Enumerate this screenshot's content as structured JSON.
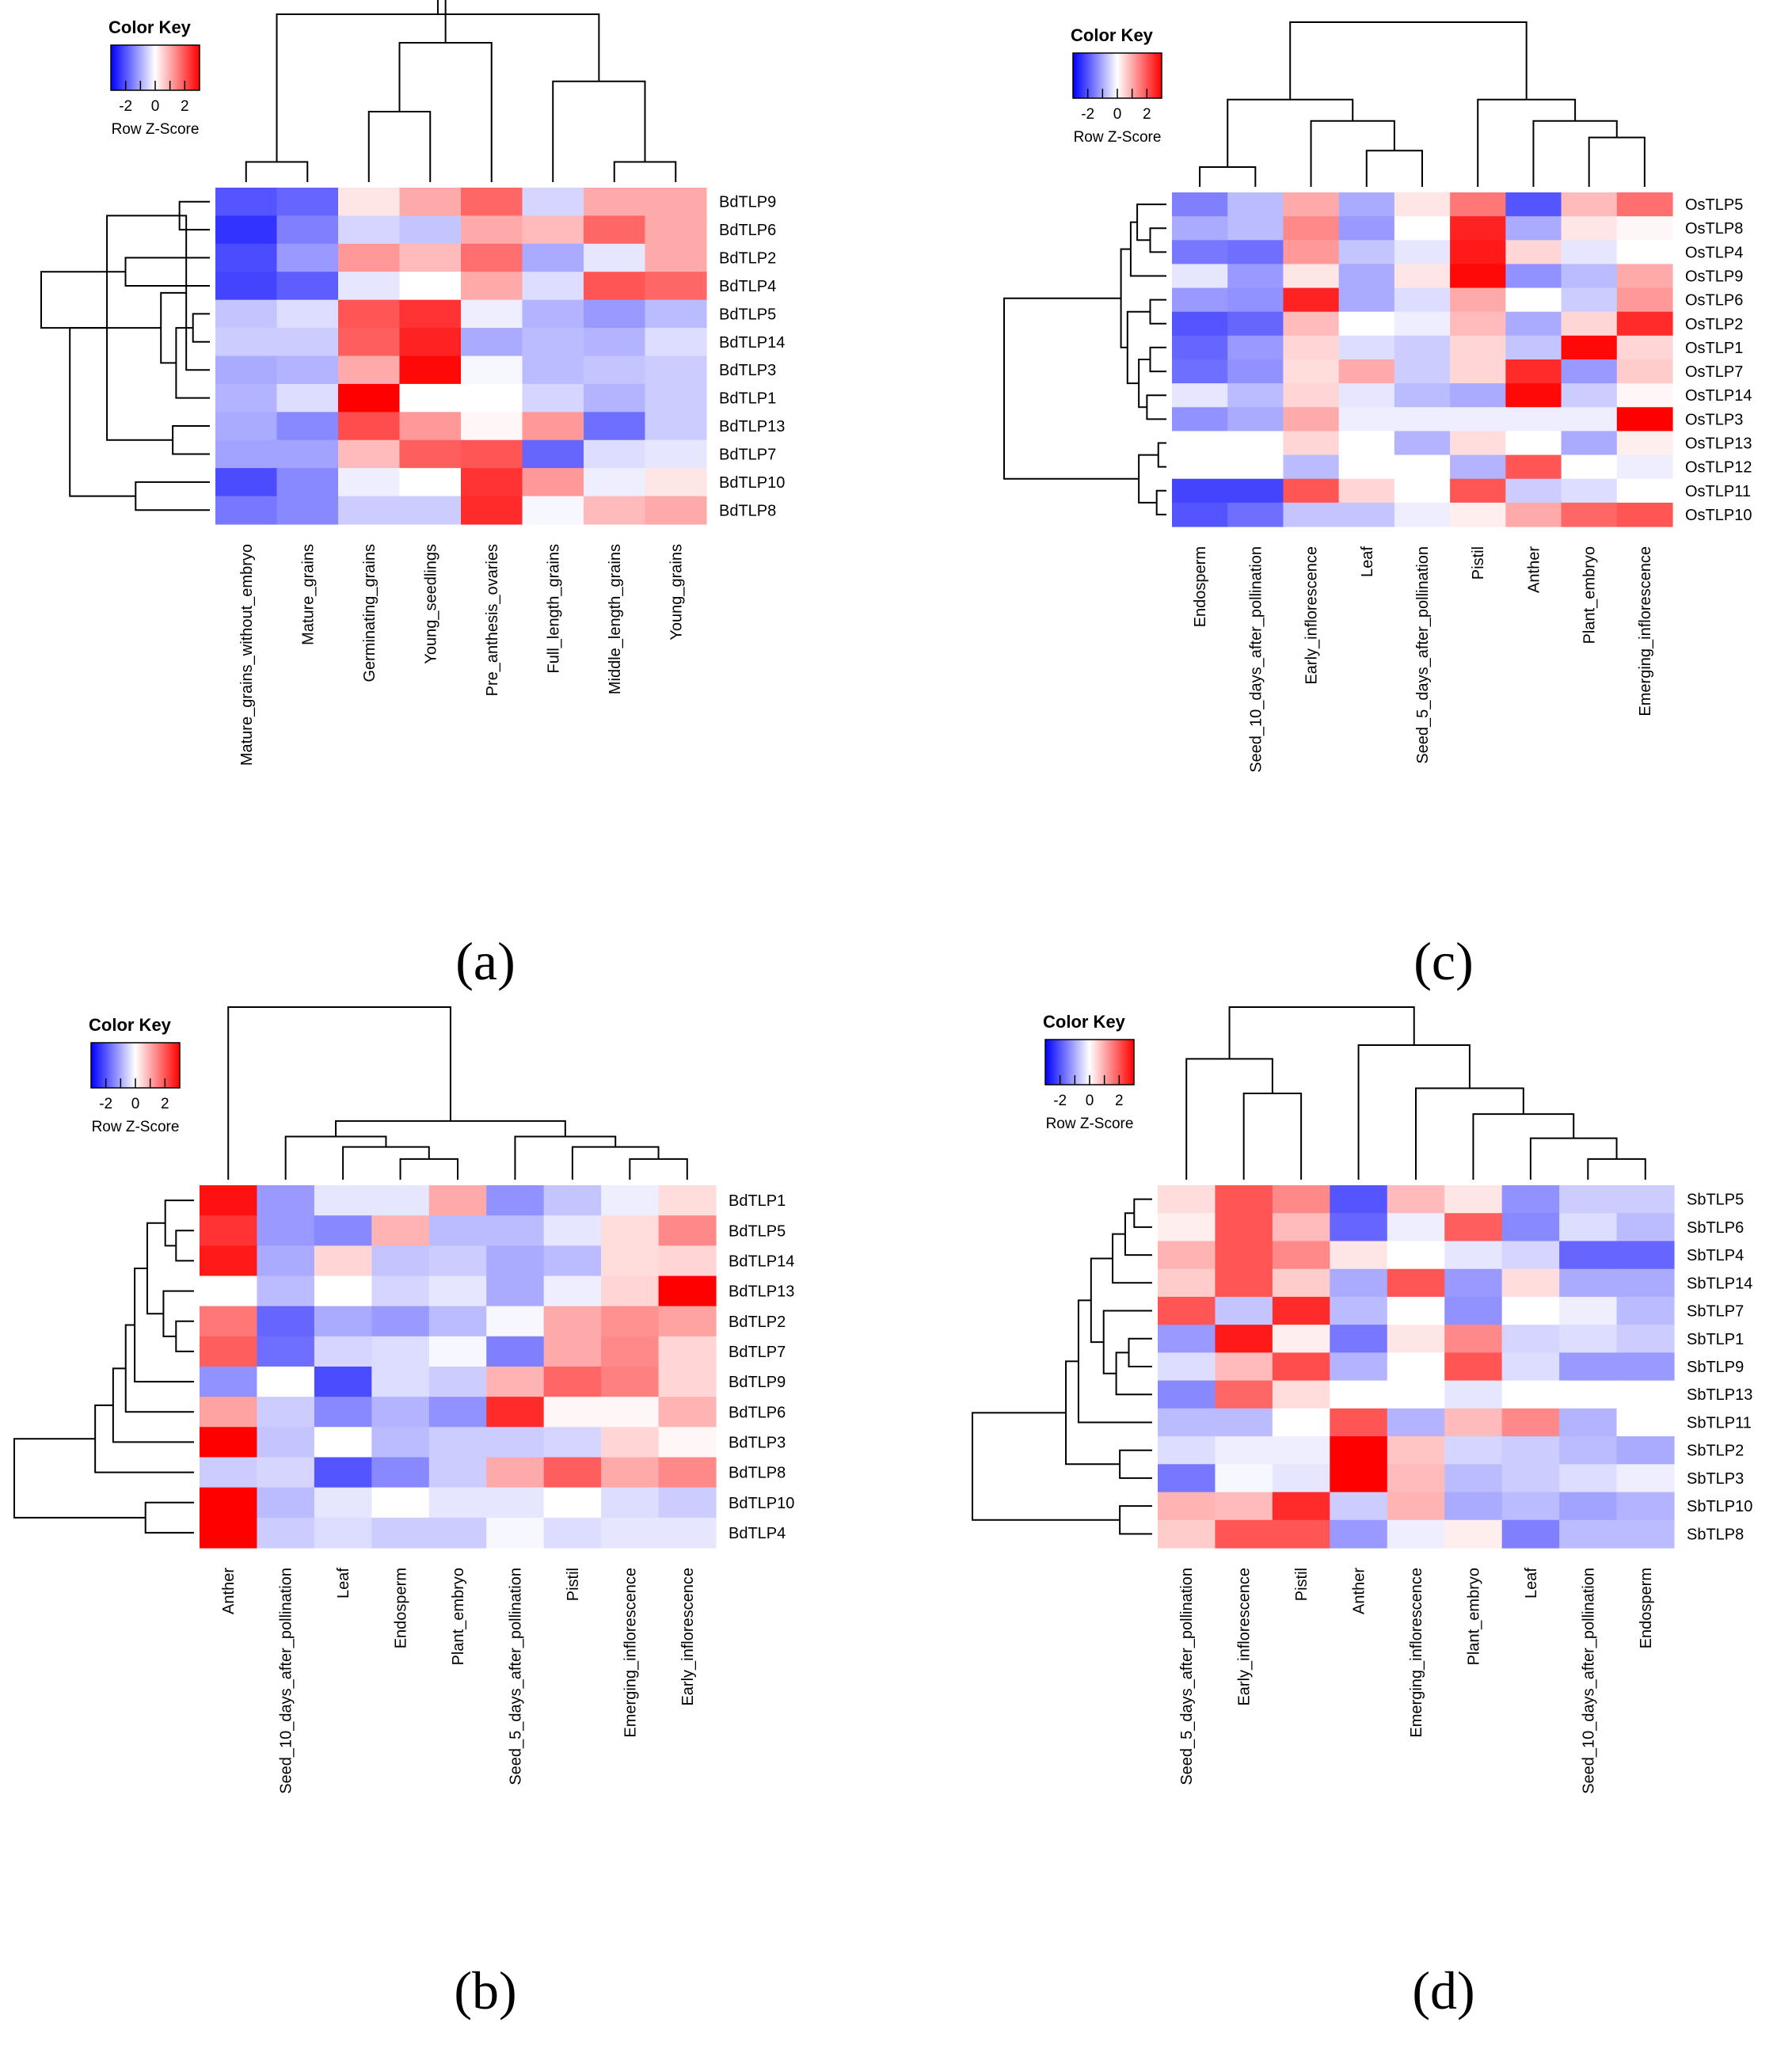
{
  "chart_data": [
    {
      "type": "heatmap",
      "panel": "(a)",
      "color_key": {
        "title": "Color Key",
        "ticks": [
          "-2",
          "0",
          "2"
        ],
        "label": "Row Z-Score",
        "colors": {
          "low": "#0000ff",
          "mid": "#ffffff",
          "high": "#ff0000"
        },
        "range": [
          -3,
          3
        ]
      },
      "columns": [
        "Mature_grains_without_embryo",
        "Mature_grains",
        "Germinating_grains",
        "Young_seedlings",
        "Pre_anthesis_ovaries",
        "Full_length_grains",
        "Middle_length_grains",
        "Young_grains"
      ],
      "rows": [
        "BdTLP9",
        "BdTLP6",
        "BdTLP2",
        "BdTLP4",
        "BdTLP5",
        "BdTLP14",
        "BdTLP3",
        "BdTLP1",
        "BdTLP13",
        "BdTLP7",
        "BdTLP10",
        "BdTLP8"
      ],
      "values": [
        [
          -2.0,
          -1.8,
          0.3,
          1.0,
          1.8,
          -0.5,
          1.0,
          1.0
        ],
        [
          -2.4,
          -1.5,
          -0.5,
          -0.7,
          1.0,
          0.8,
          1.8,
          1.0
        ],
        [
          -2.1,
          -1.2,
          1.2,
          0.8,
          1.7,
          -1.0,
          -0.3,
          1.0
        ],
        [
          -2.2,
          -1.9,
          -0.3,
          0.0,
          1.0,
          -0.4,
          2.0,
          1.8
        ],
        [
          -0.7,
          -0.4,
          2.0,
          2.4,
          -0.2,
          -0.9,
          -1.2,
          -0.8
        ],
        [
          -0.6,
          -0.6,
          1.9,
          2.6,
          -1.0,
          -0.8,
          -0.9,
          -0.4
        ],
        [
          -1.0,
          -0.9,
          1.0,
          2.9,
          -0.1,
          -0.8,
          -0.7,
          -0.6
        ],
        [
          -0.9,
          -0.4,
          3.0,
          0.0,
          0.0,
          -0.5,
          -0.9,
          -0.6
        ],
        [
          -1.0,
          -1.4,
          2.1,
          1.2,
          0.1,
          1.2,
          -1.7,
          -0.6
        ],
        [
          -1.1,
          -1.1,
          0.8,
          1.9,
          2.0,
          -1.8,
          -0.4,
          -0.3
        ],
        [
          -2.1,
          -1.4,
          -0.2,
          0.0,
          2.4,
          1.2,
          -0.2,
          0.3
        ],
        [
          -1.6,
          -1.4,
          -0.6,
          -0.6,
          2.5,
          -0.1,
          0.8,
          1.0
        ]
      ],
      "col_dendrogram": [
        [
          0,
          1,
          0.12
        ],
        [
          6,
          7,
          0.12
        ],
        [
          2,
          3,
          0.42
        ],
        [
          5,
          9,
          0.6
        ],
        [
          4,
          10,
          0.83
        ],
        [
          8,
          11,
          1.0
        ],
        [
          12,
          13,
          1.18
        ]
      ],
      "row_dendrogram": [
        [
          0,
          1,
          0.18
        ],
        [
          4,
          5,
          0.1
        ],
        [
          12,
          6,
          0.14
        ],
        [
          13,
          7,
          0.2
        ],
        [
          8,
          9,
          0.22
        ],
        [
          14,
          15,
          0.29
        ],
        [
          10,
          11,
          0.44
        ],
        [
          2,
          3,
          0.5
        ],
        [
          12,
          16,
          0.61
        ],
        [
          17,
          18,
          0.83
        ],
        [
          19,
          20,
          1.0
        ]
      ]
    },
    {
      "type": "heatmap",
      "panel": "(c)",
      "color_key": {
        "title": "Color Key",
        "ticks": [
          "-2",
          "0",
          "2"
        ],
        "label": "Row Z-Score",
        "colors": {
          "low": "#0000ff",
          "mid": "#ffffff",
          "high": "#ff0000"
        },
        "range": [
          -3,
          3
        ]
      },
      "columns": [
        "Endosperm",
        "Seed_10_days_after_pollination",
        "Early_inflorescence",
        "Leaf",
        "Seed_5_days_after_pollination",
        "Pistil",
        "Anther",
        "Plant_embryo",
        "Emerging_inflorescence"
      ],
      "rows": [
        "OsTLP5",
        "OsTLP8",
        "OsTLP4",
        "OsTLP9",
        "OsTLP6",
        "OsTLP2",
        "OsTLP1",
        "OsTLP7",
        "OsTLP14",
        "OsTLP3",
        "OsTLP13",
        "OsTLP12",
        "OsTLP11",
        "OsTLP10"
      ],
      "values": [
        [
          -1.5,
          -0.8,
          1.0,
          -1.0,
          0.3,
          1.6,
          -2.0,
          0.8,
          1.7
        ],
        [
          -1.0,
          -0.8,
          1.4,
          -1.2,
          0.0,
          2.6,
          -1.0,
          0.3,
          0.1
        ],
        [
          -1.6,
          -1.7,
          1.2,
          -0.7,
          -0.3,
          2.7,
          0.5,
          -0.3,
          0.0
        ],
        [
          -0.3,
          -1.2,
          0.3,
          -1.0,
          0.3,
          2.9,
          -1.3,
          -0.8,
          1.0
        ],
        [
          -1.2,
          -1.3,
          2.6,
          -1.0,
          -0.4,
          1.0,
          0.0,
          -0.6,
          1.2
        ],
        [
          -2.0,
          -1.8,
          0.8,
          0.0,
          -0.2,
          0.8,
          -1.0,
          0.5,
          2.5
        ],
        [
          -1.8,
          -1.2,
          0.5,
          -0.4,
          -0.6,
          0.5,
          -0.7,
          2.9,
          0.5
        ],
        [
          -1.7,
          -1.3,
          0.4,
          1.0,
          -0.6,
          0.5,
          2.5,
          -1.2,
          0.6
        ],
        [
          -0.3,
          -0.8,
          0.5,
          -0.3,
          -0.8,
          -1.0,
          2.9,
          -0.6,
          0.1
        ],
        [
          -1.3,
          -1.0,
          1.0,
          -0.2,
          -0.2,
          -0.2,
          -0.2,
          -0.2,
          3.0
        ],
        [
          0.0,
          0.0,
          0.5,
          0.0,
          -0.9,
          0.4,
          0.0,
          -1.0,
          0.2
        ],
        [
          0.0,
          0.0,
          -0.8,
          0.0,
          0.0,
          -0.9,
          2.0,
          0.0,
          -0.2
        ],
        [
          -2.2,
          -2.2,
          2.0,
          0.5,
          0.0,
          2.0,
          -0.6,
          -0.4,
          0.0
        ],
        [
          -2.0,
          -1.7,
          -0.7,
          -0.7,
          -0.2,
          0.2,
          1.0,
          1.8,
          2.0
        ]
      ],
      "col_dendrogram": [
        [
          0,
          1,
          0.12
        ],
        [
          3,
          4,
          0.22
        ],
        [
          2,
          10,
          0.4
        ],
        [
          9,
          11,
          0.53
        ],
        [
          7,
          8,
          0.3
        ],
        [
          6,
          13,
          0.4
        ],
        [
          5,
          14,
          0.53
        ],
        [
          12,
          15,
          1.0
        ]
      ],
      "row_dendrogram": [
        [
          1,
          2,
          0.1
        ],
        [
          0,
          14,
          0.18
        ],
        [
          4,
          5,
          0.1
        ],
        [
          6,
          7,
          0.1
        ],
        [
          8,
          9,
          0.12
        ],
        [
          17,
          18,
          0.17
        ],
        [
          3,
          15,
          0.22
        ],
        [
          16,
          19,
          0.24
        ],
        [
          10,
          11,
          0.05
        ],
        [
          12,
          13,
          0.06
        ],
        [
          22,
          23,
          0.17
        ],
        [
          20,
          21,
          0.28
        ],
        [
          24,
          25,
          1.0
        ]
      ]
    },
    {
      "type": "heatmap",
      "panel": "(b)",
      "color_key": {
        "title": "Color Key",
        "ticks": [
          "-2",
          "0",
          "2"
        ],
        "label": "Row Z-Score",
        "colors": {
          "low": "#0000ff",
          "mid": "#ffffff",
          "high": "#ff0000"
        },
        "range": [
          -3,
          3
        ]
      },
      "columns": [
        "Anther",
        "Seed_10_days_after_pollination",
        "Leaf",
        "Endosperm",
        "Plant_embryo",
        "Seed_5_days_after_pollination",
        "Pistil",
        "Emerging_inflorescence",
        "Early_inflorescence"
      ],
      "rows": [
        "BdTLP1",
        "BdTLP5",
        "BdTLP14",
        "BdTLP13",
        "BdTLP2",
        "BdTLP7",
        "BdTLP9",
        "BdTLP6",
        "BdTLP3",
        "BdTLP8",
        "BdTLP10",
        "BdTLP4"
      ],
      "values": [
        [
          2.8,
          -1.2,
          -0.3,
          -0.3,
          1.0,
          -1.3,
          -0.7,
          -0.2,
          0.4
        ],
        [
          2.4,
          -1.2,
          -1.4,
          0.9,
          -0.8,
          -0.8,
          -0.3,
          0.4,
          1.4
        ],
        [
          2.7,
          -1.0,
          0.5,
          -0.7,
          -0.6,
          -1.0,
          -0.8,
          0.4,
          0.5
        ],
        [
          0.0,
          -0.8,
          0.0,
          -0.5,
          -0.3,
          -1.0,
          -0.2,
          0.5,
          3.0
        ],
        [
          1.6,
          -1.8,
          -1.0,
          -1.2,
          -0.8,
          -0.1,
          1.0,
          1.3,
          1.1
        ],
        [
          1.9,
          -1.7,
          -0.5,
          -0.4,
          -0.1,
          -1.5,
          1.0,
          1.4,
          0.5
        ],
        [
          -1.3,
          0.0,
          -2.1,
          -0.4,
          -0.6,
          0.9,
          1.8,
          1.5,
          0.5
        ],
        [
          1.1,
          -0.6,
          -1.4,
          -0.9,
          -1.3,
          2.5,
          0.1,
          0.1,
          0.9
        ],
        [
          3.0,
          -0.7,
          0.0,
          -0.8,
          -0.6,
          -0.6,
          -0.5,
          0.5,
          0.1
        ],
        [
          -0.6,
          -0.5,
          -2.0,
          -1.4,
          -0.6,
          1.0,
          1.9,
          1.0,
          1.4
        ],
        [
          3.0,
          -0.8,
          -0.3,
          0.0,
          -0.3,
          -0.3,
          0.0,
          -0.4,
          -0.6
        ],
        [
          3.0,
          -0.6,
          -0.4,
          -0.6,
          -0.6,
          -0.1,
          -0.4,
          -0.3,
          -0.3
        ]
      ],
      "col_dendrogram": [
        [
          3,
          4,
          0.12
        ],
        [
          2,
          9,
          0.19
        ],
        [
          1,
          10,
          0.25
        ],
        [
          7,
          8,
          0.12
        ],
        [
          6,
          12,
          0.19
        ],
        [
          5,
          13,
          0.25
        ],
        [
          11,
          14,
          0.34
        ],
        [
          0,
          15,
          1.0
        ]
      ],
      "row_dendrogram": [
        [
          1,
          2,
          0.1
        ],
        [
          0,
          12,
          0.16
        ],
        [
          4,
          5,
          0.1
        ],
        [
          3,
          14,
          0.17
        ],
        [
          13,
          15,
          0.26
        ],
        [
          16,
          6,
          0.33
        ],
        [
          17,
          7,
          0.38
        ],
        [
          18,
          8,
          0.45
        ],
        [
          19,
          9,
          0.55
        ],
        [
          10,
          11,
          0.27
        ],
        [
          20,
          21,
          1.0
        ]
      ]
    },
    {
      "type": "heatmap",
      "panel": "(d)",
      "color_key": {
        "title": "Color Key",
        "ticks": [
          "-2",
          "0",
          "2"
        ],
        "label": "Row Z-Score",
        "colors": {
          "low": "#0000ff",
          "mid": "#ffffff",
          "high": "#ff0000"
        },
        "range": [
          -3,
          3
        ]
      },
      "columns": [
        "Seed_5_days_after_pollination",
        "Early_inflorescence",
        "Pistil",
        "Anther",
        "Emerging_inflorescence",
        "Plant_embryo",
        "Leaf",
        "Seed_10_days_after_pollination",
        "Endosperm"
      ],
      "rows": [
        "SbTLP5",
        "SbTLP6",
        "SbTLP4",
        "SbTLP14",
        "SbTLP7",
        "SbTLP1",
        "SbTLP9",
        "SbTLP13",
        "SbTLP11",
        "SbTLP2",
        "SbTLP3",
        "SbTLP10",
        "SbTLP8"
      ],
      "values": [
        [
          0.4,
          2.0,
          1.4,
          -2.0,
          0.8,
          0.3,
          -1.3,
          -0.6,
          -0.6
        ],
        [
          0.2,
          2.0,
          0.8,
          -1.8,
          -0.2,
          1.9,
          -1.4,
          -0.4,
          -0.8
        ],
        [
          0.9,
          2.0,
          1.4,
          0.3,
          0.0,
          -0.3,
          -0.5,
          -1.8,
          -1.8
        ],
        [
          0.6,
          2.0,
          0.6,
          -1.0,
          2.0,
          -1.2,
          0.4,
          -1.0,
          -1.0
        ],
        [
          2.0,
          -0.7,
          2.5,
          -0.8,
          0.0,
          -1.3,
          0.0,
          -0.2,
          -0.8
        ],
        [
          -1.2,
          2.7,
          0.2,
          -1.6,
          0.3,
          1.4,
          -0.5,
          -0.4,
          -0.6
        ],
        [
          -0.4,
          0.8,
          2.1,
          -0.9,
          0.0,
          2.0,
          -0.4,
          -1.2,
          -1.2
        ],
        [
          -1.4,
          1.8,
          0.4,
          0.0,
          0.0,
          -0.3,
          0.0,
          0.0,
          0.0
        ],
        [
          -0.8,
          -0.8,
          0.0,
          2.0,
          -0.9,
          0.8,
          1.4,
          -0.9,
          0.0
        ],
        [
          -0.4,
          -0.2,
          -0.2,
          3.0,
          0.7,
          -0.5,
          -0.6,
          -0.8,
          -1.0
        ],
        [
          -1.6,
          -0.1,
          -0.3,
          3.0,
          0.8,
          -0.8,
          -0.6,
          -0.4,
          -0.2
        ],
        [
          0.9,
          0.8,
          2.5,
          -0.6,
          0.9,
          -1.0,
          -0.8,
          -1.1,
          -0.9
        ],
        [
          0.6,
          2.0,
          2.0,
          -1.2,
          -0.2,
          0.2,
          -1.5,
          -0.8,
          -0.8
        ]
      ],
      "col_dendrogram": [
        [
          1,
          2,
          0.5
        ],
        [
          0,
          9,
          0.7
        ],
        [
          7,
          8,
          0.12
        ],
        [
          6,
          11,
          0.24
        ],
        [
          5,
          12,
          0.38
        ],
        [
          4,
          13,
          0.53
        ],
        [
          3,
          14,
          0.78
        ],
        [
          10,
          15,
          1.0
        ]
      ],
      "row_dendrogram": [
        [
          0,
          1,
          0.1
        ],
        [
          13,
          2,
          0.15
        ],
        [
          14,
          3,
          0.22
        ],
        [
          5,
          6,
          0.13
        ],
        [
          16,
          7,
          0.2
        ],
        [
          4,
          17,
          0.27
        ],
        [
          15,
          18,
          0.34
        ],
        [
          19,
          8,
          0.41
        ],
        [
          9,
          10,
          0.18
        ],
        [
          20,
          21,
          0.48
        ],
        [
          11,
          12,
          0.18
        ],
        [
          22,
          23,
          1.0
        ]
      ]
    }
  ],
  "panel_labels": [
    "(a)",
    "(c)",
    "(b)",
    "(d)"
  ]
}
